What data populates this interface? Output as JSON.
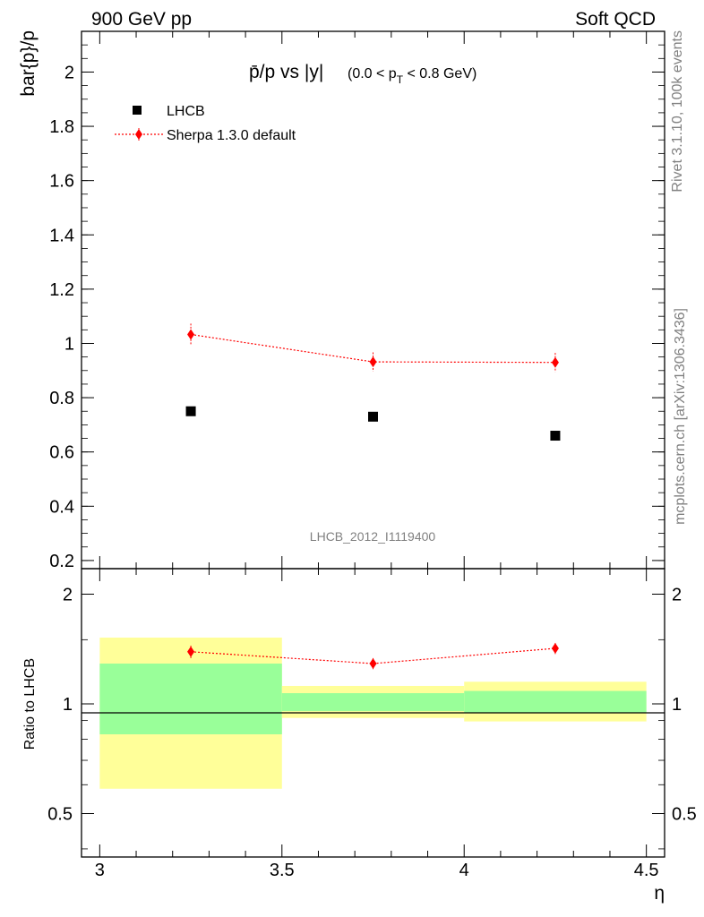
{
  "header": {
    "left": "900 GeV pp",
    "right": "Soft QCD"
  },
  "side": {
    "rivet": "Rivet 3.1.10,  100k events",
    "mcplots": "mcplots.cern.ch [arXiv:1306.3436]"
  },
  "colors": {
    "mc": "#ff0000",
    "band_inner": "#99ff99",
    "band_outer": "#ffff99",
    "data": "#000000"
  },
  "chart_data": [
    {
      "type": "scatter",
      "title_main": "p̄/p vs |y|",
      "title_sub": "(0.0 < p",
      "title_sub_index": "T",
      "title_sub_tail": " < 0.8 GeV)",
      "ylabel": "bar{p}/p",
      "watermark": "LHCB_2012_I1119400",
      "xlim": [
        2.95,
        4.55
      ],
      "ylim": [
        0.17,
        2.15
      ],
      "yticks": [
        0.2,
        0.4,
        0.6,
        0.8,
        1,
        1.2,
        1.4,
        1.6,
        1.8,
        2
      ],
      "ytick_labels": [
        "0.2",
        "0.4",
        "0.6",
        "0.8",
        "1",
        "1.2",
        "1.4",
        "1.6",
        "1.8",
        "2"
      ],
      "legend_placement": "top-left",
      "series": [
        {
          "name": "LHCB",
          "marker": "square",
          "x": [
            3.25,
            3.75,
            4.25
          ],
          "y": [
            0.75,
            0.73,
            0.66
          ]
        },
        {
          "name": "Sherpa 1.3.0 default",
          "marker": "diamond",
          "line": "dotted",
          "x": [
            3.25,
            3.75,
            4.25
          ],
          "y": [
            1.033,
            0.932,
            0.93
          ],
          "yerr": [
            0.04,
            0.035,
            0.035
          ]
        }
      ]
    },
    {
      "type": "scatter",
      "ylabel": "Ratio to LHCB",
      "xlabel": "η",
      "xlim": [
        2.95,
        4.55
      ],
      "ylim": [
        0.38,
        2.35
      ],
      "log_y": true,
      "yticks": [
        0.5,
        1,
        2
      ],
      "ytick_labels": [
        "0.5",
        "1",
        "2"
      ],
      "xticks": [
        3,
        3.5,
        4,
        4.5
      ],
      "xtick_labels": [
        "3",
        "3.5",
        "4",
        "4.5"
      ],
      "bands": [
        {
          "x0": 3.0,
          "x1": 3.5,
          "inner": [
            0.825,
            1.29
          ],
          "outer": [
            0.585,
            1.52
          ]
        },
        {
          "x0": 3.5,
          "x1": 4.0,
          "inner": [
            0.955,
            1.07
          ],
          "outer": [
            0.915,
            1.12
          ]
        },
        {
          "x0": 4.0,
          "x1": 4.5,
          "inner": [
            0.945,
            1.085
          ],
          "outer": [
            0.895,
            1.15
          ]
        }
      ],
      "series": [
        {
          "name": "Sherpa 1.3.0 default",
          "x": [
            3.25,
            3.75,
            4.25
          ],
          "y": [
            1.39,
            1.29,
            1.42
          ],
          "yerr": [
            0.055,
            0.045,
            0.05
          ]
        }
      ]
    }
  ]
}
